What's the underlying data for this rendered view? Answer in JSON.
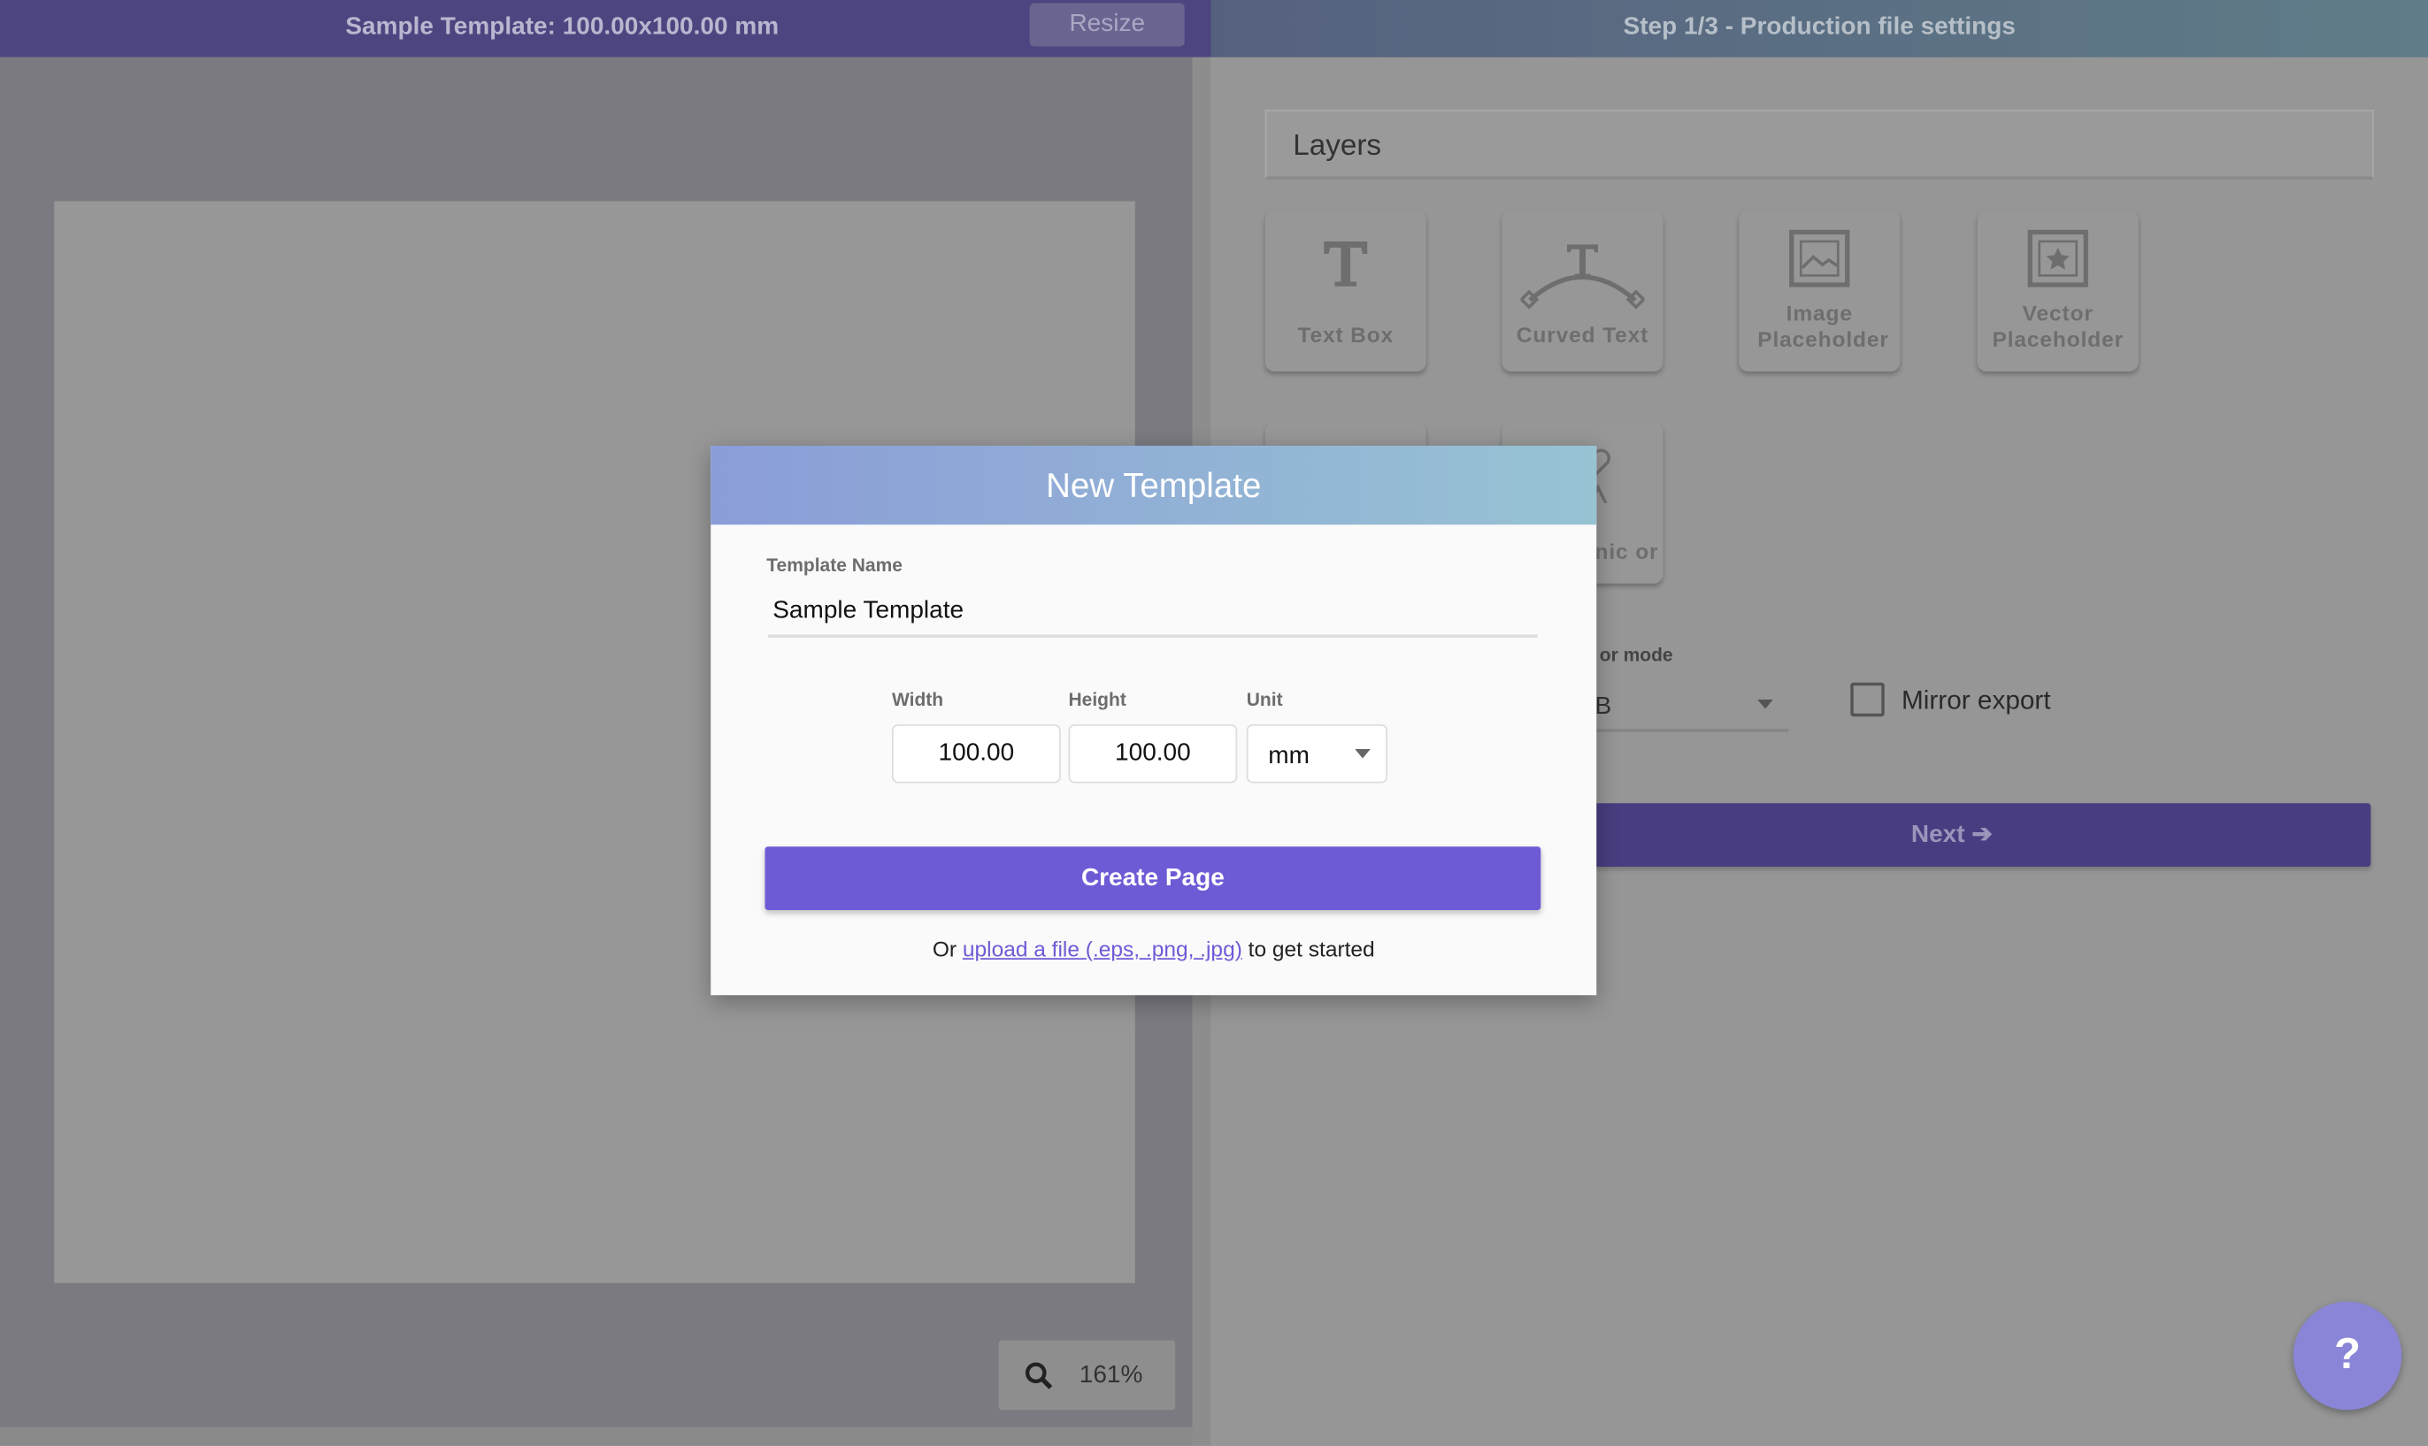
{
  "header": {
    "left_title": "Sample Template: 100.00x100.00 mm",
    "resize_label": "Resize",
    "right_title": "Step 1/3 - Production file settings"
  },
  "canvas": {
    "zoom": "161%"
  },
  "panel": {
    "layers_title": "Layers",
    "tiles": [
      {
        "label": "Text Box",
        "icon": "text-icon"
      },
      {
        "label": "Curved Text",
        "icon": "curved-text-icon"
      },
      {
        "label": "Image Placeholder",
        "icon": "image-icon"
      },
      {
        "label": "Vector Placeholder",
        "icon": "vector-star-icon"
      },
      {
        "label": "",
        "icon": "grid-icon"
      },
      {
        "label": "nic or",
        "icon": "shapes-icon"
      }
    ],
    "color_mode_label": "or mode",
    "color_mode_value": "B",
    "mirror_export_label": "Mirror export",
    "next_label": "Next"
  },
  "help_label": "?",
  "modal": {
    "title": "New Template",
    "name_label": "Template Name",
    "name_value": "Sample Template",
    "width_label": "Width",
    "width_value": "100.00",
    "height_label": "Height",
    "height_value": "100.00",
    "unit_label": "Unit",
    "unit_value": "mm",
    "create_label": "Create Page",
    "footer_prefix": "Or",
    "footer_link": "upload a file (.eps, .png, .jpg)",
    "footer_suffix": "to get started"
  },
  "colors": {
    "accent": "#6d5bd6",
    "header_gradient_start": "#8b9dd8",
    "header_gradient_end": "#97c3d3"
  }
}
